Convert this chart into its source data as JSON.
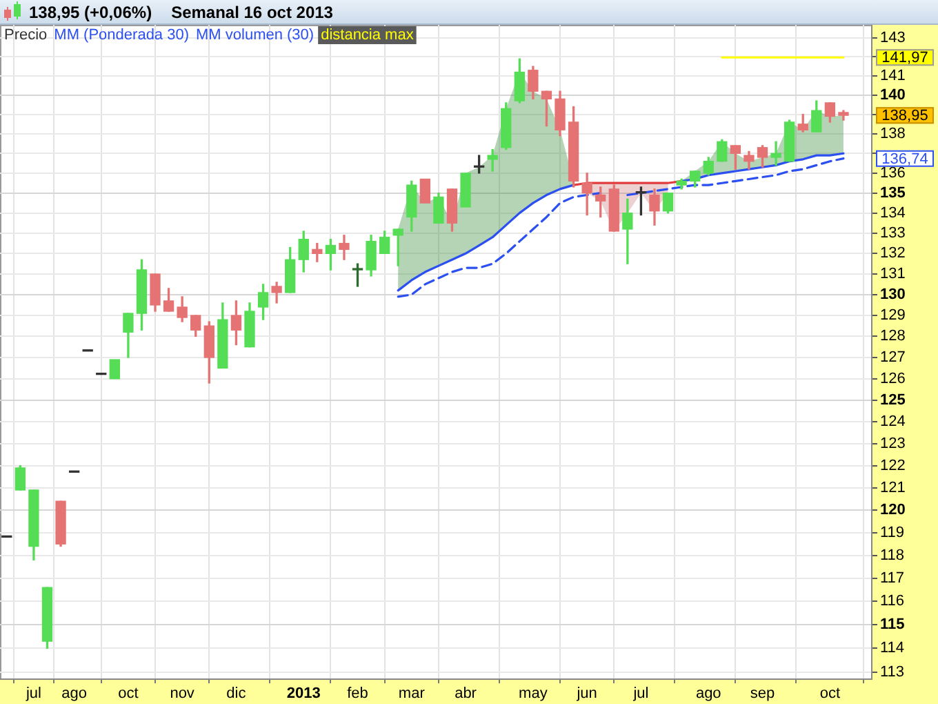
{
  "chart_data": {
    "type": "candlestick",
    "title": "138,95 (+0,06%)",
    "subtitle": "Semanal 16 oct 2013",
    "categories": [
      null,
      null,
      "jul",
      null,
      null,
      "ago",
      null,
      null,
      null,
      "oct",
      null,
      null,
      null,
      "nov",
      null,
      null,
      null,
      "dic",
      null,
      null,
      null,
      null,
      "2013",
      null,
      null,
      null,
      "feb",
      null,
      null,
      null,
      "mar",
      null,
      null,
      null,
      "abr",
      null,
      null,
      null,
      null,
      "may",
      null,
      null,
      null,
      "jun",
      null,
      null,
      null,
      "jul",
      null,
      null,
      null,
      null,
      "ago",
      null,
      null,
      null,
      "sep",
      null,
      null,
      null,
      null,
      "oct",
      null
    ],
    "series": [
      {
        "name": "Precio",
        "color": "#333333",
        "ohlc": [
          [
            118.8,
            118.8,
            118.8,
            118.8
          ],
          [
            120.9,
            122.0,
            120.9,
            121.9
          ],
          [
            118.4,
            120.9,
            117.8,
            120.9
          ],
          [
            114.3,
            116.6,
            114.0,
            116.6
          ],
          [
            120.4,
            120.4,
            118.4,
            118.5
          ],
          [
            121.7,
            121.7,
            121.7,
            121.7
          ],
          [
            127.3,
            127.3,
            127.3,
            127.3
          ],
          [
            126.2,
            126.2,
            126.2,
            126.2
          ],
          [
            126.0,
            126.9,
            126.0,
            126.9
          ],
          [
            128.2,
            129.1,
            127.0,
            129.1
          ],
          [
            129.1,
            131.7,
            128.3,
            131.2
          ],
          [
            131.0,
            131.0,
            129.2,
            129.5
          ],
          [
            129.7,
            130.3,
            129.2,
            129.2
          ],
          [
            129.4,
            129.9,
            128.7,
            128.9
          ],
          [
            129.0,
            129.0,
            128.0,
            128.3
          ],
          [
            128.5,
            128.7,
            125.8,
            127.0
          ],
          [
            126.5,
            129.6,
            126.5,
            128.8
          ],
          [
            129.0,
            129.7,
            127.6,
            128.3
          ],
          [
            127.5,
            129.6,
            127.5,
            129.2
          ],
          [
            129.4,
            130.5,
            128.8,
            130.1
          ],
          [
            130.4,
            130.6,
            129.6,
            130.1
          ],
          [
            130.1,
            132.3,
            130.1,
            131.7
          ],
          [
            131.7,
            133.1,
            131.1,
            132.7
          ],
          [
            132.2,
            132.5,
            131.6,
            132.0
          ],
          [
            132.0,
            132.7,
            131.2,
            132.4
          ],
          [
            132.5,
            132.9,
            131.7,
            132.2
          ],
          [
            131.2,
            131.5,
            130.4,
            131.2
          ],
          [
            131.2,
            132.9,
            130.9,
            132.6
          ],
          [
            132.0,
            133.1,
            132.0,
            132.8
          ],
          [
            132.9,
            133.2,
            131.4,
            133.2
          ],
          [
            133.8,
            135.6,
            133.1,
            135.4
          ],
          [
            135.7,
            135.7,
            134.5,
            134.5
          ],
          [
            133.5,
            135.0,
            133.5,
            134.8
          ],
          [
            135.2,
            135.2,
            133.1,
            133.5
          ],
          [
            134.3,
            136.0,
            134.3,
            136.0
          ],
          [
            136.3,
            136.9,
            136.0,
            136.3
          ],
          [
            136.7,
            137.2,
            136.1,
            136.9
          ],
          [
            137.3,
            139.6,
            137.2,
            139.3
          ],
          [
            139.7,
            141.9,
            139.6,
            141.2
          ],
          [
            141.3,
            141.5,
            139.8,
            140.2
          ],
          [
            140.2,
            140.2,
            138.4,
            139.8
          ],
          [
            139.8,
            140.2,
            137.9,
            138.2
          ],
          [
            138.6,
            139.4,
            135.3,
            135.6
          ],
          [
            135.5,
            136.0,
            133.9,
            135.0
          ],
          [
            134.9,
            135.3,
            133.8,
            134.6
          ],
          [
            135.2,
            135.4,
            133.1,
            133.1
          ],
          [
            133.2,
            134.7,
            131.5,
            134.0
          ],
          [
            135.0,
            135.3,
            133.9,
            135.0
          ],
          [
            134.9,
            135.2,
            133.4,
            134.1
          ],
          [
            134.1,
            135.0,
            134.0,
            135.0
          ],
          [
            135.4,
            135.7,
            135.2,
            135.6
          ],
          [
            135.6,
            136.1,
            135.3,
            136.1
          ],
          [
            136.0,
            136.8,
            135.9,
            136.6
          ],
          [
            136.6,
            137.7,
            136.6,
            137.6
          ],
          [
            137.4,
            137.4,
            136.2,
            137.0
          ],
          [
            136.9,
            137.1,
            136.2,
            136.6
          ],
          [
            137.3,
            137.4,
            136.3,
            136.8
          ],
          [
            136.8,
            137.6,
            136.4,
            137.0
          ],
          [
            136.6,
            138.7,
            136.6,
            138.6
          ],
          [
            138.5,
            139.0,
            138.1,
            138.2
          ],
          [
            138.1,
            139.7,
            138.1,
            139.2
          ],
          [
            139.6,
            139.6,
            138.6,
            138.9
          ],
          [
            139.1,
            139.2,
            138.7,
            138.95
          ]
        ],
        "colors": [
          "#333333",
          "#55dd55",
          "#55dd55",
          "#55dd55",
          "#e57373",
          "#333333",
          "#333333",
          "#333333",
          "#55dd55",
          "#55dd55",
          "#55dd55",
          "#e57373",
          "#e57373",
          "#e57373",
          "#e57373",
          "#e57373",
          "#55dd55",
          "#e57373",
          "#55dd55",
          "#55dd55",
          "#e57373",
          "#55dd55",
          "#55dd55",
          "#e57373",
          "#55dd55",
          "#e57373",
          "#2e6b2e",
          "#55dd55",
          "#55dd55",
          "#55dd55",
          "#55dd55",
          "#e57373",
          "#55dd55",
          "#e57373",
          "#55dd55",
          "#333333",
          "#55dd55",
          "#55dd55",
          "#55dd55",
          "#e57373",
          "#e57373",
          "#e57373",
          "#e57373",
          "#e57373",
          "#e57373",
          "#e57373",
          "#55dd55",
          "#333333",
          "#e57373",
          "#55dd55",
          "#55dd55",
          "#55dd55",
          "#55dd55",
          "#55dd55",
          "#e57373",
          "#e57373",
          "#e57373",
          "#55dd55",
          "#55dd55",
          "#e57373",
          "#55dd55",
          "#e57373",
          "#e57373"
        ]
      },
      {
        "type": "line",
        "name": "MM (Ponderada 30)",
        "color": "#2b4ff0",
        "values": [
          null,
          null,
          null,
          null,
          null,
          null,
          null,
          null,
          null,
          null,
          null,
          null,
          null,
          null,
          null,
          null,
          null,
          null,
          null,
          null,
          null,
          null,
          null,
          null,
          null,
          null,
          null,
          null,
          null,
          130.2,
          130.7,
          131.1,
          131.4,
          131.7,
          132.0,
          132.4,
          132.8,
          133.4,
          134.0,
          134.5,
          134.9,
          135.2,
          135.4,
          null,
          null,
          null,
          null,
          null,
          null,
          null,
          135.6,
          135.7,
          135.9,
          136.0,
          136.1,
          136.2,
          136.3,
          136.4,
          136.6,
          136.7,
          136.9,
          136.9,
          137.0
        ],
        "lower": [
          null,
          null,
          null,
          null,
          null,
          null,
          null,
          null,
          null,
          null,
          null,
          null,
          null,
          null,
          null,
          null,
          null,
          null,
          null,
          null,
          null,
          null,
          null,
          null,
          null,
          null,
          null,
          null,
          null,
          130.2,
          130.7,
          131.1,
          131.4,
          131.7,
          132.0,
          132.4,
          132.8,
          133.4,
          134.0,
          134.5,
          134.9,
          135.2,
          135.4,
          null,
          null,
          null,
          null,
          null,
          null,
          null,
          135.6,
          135.7,
          135.9,
          136.0,
          136.1,
          136.2,
          136.3,
          136.4,
          136.6,
          136.7,
          136.9,
          136.9,
          137.0
        ],
        "upper": [
          null,
          null,
          null,
          null,
          null,
          null,
          null,
          null,
          null,
          null,
          null,
          null,
          null,
          null,
          null,
          null,
          null,
          null,
          null,
          null,
          null,
          null,
          null,
          null,
          null,
          null,
          null,
          null,
          null,
          133.2,
          135.4,
          134.5,
          134.8,
          133.5,
          136.0,
          136.3,
          136.9,
          139.3,
          141.2,
          140.2,
          139.8,
          138.2,
          135.6,
          null,
          null,
          null,
          null,
          null,
          null,
          null,
          135.6,
          136.1,
          136.6,
          137.6,
          137.0,
          136.6,
          136.8,
          137.0,
          138.6,
          138.2,
          139.2,
          138.9,
          138.95
        ]
      },
      {
        "type": "line",
        "color": "#e03c3c",
        "values": [
          null,
          null,
          null,
          null,
          null,
          null,
          null,
          null,
          null,
          null,
          null,
          null,
          null,
          null,
          null,
          null,
          null,
          null,
          null,
          null,
          null,
          null,
          null,
          null,
          null,
          null,
          null,
          null,
          null,
          null,
          null,
          null,
          null,
          null,
          null,
          null,
          null,
          null,
          null,
          null,
          null,
          null,
          135.4,
          135.5,
          135.5,
          135.5,
          135.5,
          135.5,
          135.5,
          135.5,
          135.6,
          null,
          null,
          null,
          null,
          null,
          null,
          null,
          null,
          null,
          null,
          null,
          null
        ],
        "lower": [
          null,
          null,
          null,
          null,
          null,
          null,
          null,
          null,
          null,
          null,
          null,
          null,
          null,
          null,
          null,
          null,
          null,
          null,
          null,
          null,
          null,
          null,
          null,
          null,
          null,
          null,
          null,
          null,
          null,
          null,
          null,
          null,
          null,
          null,
          null,
          null,
          null,
          null,
          null,
          null,
          null,
          null,
          null,
          135.0,
          134.6,
          133.1,
          134.0,
          135.0,
          134.1,
          135.0,
          null,
          null,
          null,
          null,
          null,
          null,
          null,
          null,
          null,
          null,
          null,
          null,
          null
        ],
        "upper": [
          null,
          null,
          null,
          null,
          null,
          null,
          null,
          null,
          null,
          null,
          null,
          null,
          null,
          null,
          null,
          null,
          null,
          null,
          null,
          null,
          null,
          null,
          null,
          null,
          null,
          null,
          null,
          null,
          null,
          null,
          null,
          null,
          null,
          null,
          null,
          null,
          null,
          null,
          null,
          null,
          null,
          null,
          null,
          135.5,
          135.5,
          135.5,
          135.5,
          135.5,
          135.5,
          135.5,
          null,
          null,
          null,
          null,
          null,
          null,
          null,
          null,
          null,
          null,
          null,
          null,
          null
        ]
      },
      {
        "type": "line",
        "name": "MM volumen (30)",
        "color": "#2b4ff0",
        "line_style": "dashed",
        "values": [
          null,
          null,
          null,
          null,
          null,
          null,
          null,
          null,
          null,
          null,
          null,
          null,
          null,
          null,
          null,
          null,
          null,
          null,
          null,
          null,
          null,
          null,
          null,
          null,
          null,
          null,
          null,
          null,
          null,
          129.9,
          130.0,
          130.5,
          130.8,
          131.1,
          131.3,
          131.3,
          131.5,
          132.0,
          132.6,
          133.2,
          133.8,
          134.5,
          134.8,
          134.9,
          135.0,
          null,
          134.9,
          135.0,
          135.1,
          135.2,
          135.3,
          135.4,
          135.4,
          135.5,
          135.6,
          135.7,
          135.8,
          135.9,
          136.1,
          136.2,
          136.4,
          136.6,
          136.74
        ]
      },
      {
        "type": "line",
        "name": "distancia max",
        "color": "#ffff00",
        "values": [
          null,
          null,
          null,
          null,
          null,
          null,
          null,
          null,
          null,
          null,
          null,
          null,
          null,
          null,
          null,
          null,
          null,
          null,
          null,
          null,
          null,
          null,
          null,
          null,
          null,
          null,
          null,
          null,
          null,
          null,
          null,
          null,
          null,
          null,
          null,
          null,
          null,
          null,
          null,
          null,
          null,
          null,
          null,
          null,
          null,
          null,
          null,
          null,
          null,
          null,
          null,
          null,
          null,
          141.97,
          141.97,
          141.97,
          141.97,
          141.97,
          141.97,
          141.97,
          141.97,
          141.97,
          141.97
        ]
      }
    ],
    "ylim": [
      112.7,
      143.7
    ],
    "yticks": [
      113,
      114,
      115,
      116,
      117,
      118,
      119,
      120,
      121,
      122,
      123,
      124,
      125,
      126,
      127,
      128,
      129,
      130,
      131,
      132,
      133,
      134,
      135,
      136,
      {
        "value": 137,
        "label": null
      },
      138,
      {
        "value": 139,
        "label": null
      },
      140,
      141,
      {
        "value": 142,
        "label": null
      },
      143
    ],
    "log": "y",
    "grid": true,
    "legend": "top left",
    "marker": "none",
    "annotations": [
      "141,97",
      "138,95",
      "136,74"
    ]
  }
}
